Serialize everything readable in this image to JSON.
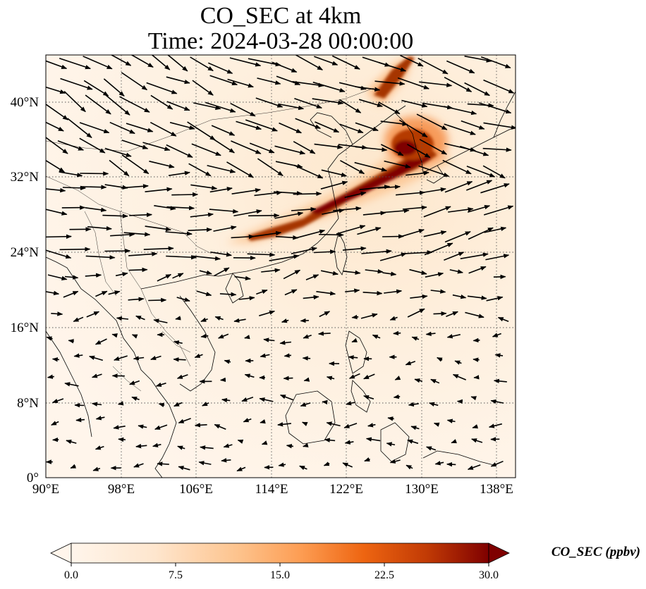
{
  "title": {
    "line1": "CO_SEC at 4km",
    "line2": "Time: 2024-03-28 00:00:00"
  },
  "map": {
    "lon_range": [
      90,
      140
    ],
    "lat_range": [
      0,
      45
    ],
    "lon_ticks": [
      "90°E",
      "98°E",
      "106°E",
      "114°E",
      "122°E",
      "130°E",
      "138°E"
    ],
    "lat_ticks": [
      "0°",
      "8°N",
      "16°N",
      "24°N",
      "32°N",
      "40°N"
    ],
    "lon_tick_values": [
      90,
      98,
      106,
      114,
      122,
      130,
      138
    ],
    "lat_tick_values": [
      0,
      8,
      16,
      24,
      32,
      40
    ],
    "gridlines": "dotted",
    "field": "CO_SEC",
    "plume": "narrow band of high CO from ~108°E 25°N northeast to ~130°E 44°N, peak over Korea / Yellow Sea",
    "vectors": "wind vectors; strong westerly/northwesterly flow north of 24°N, weak and variable to the south"
  },
  "colorbar": {
    "label": "CO_SEC (ppbv)",
    "ticks": [
      "0.0",
      "7.5",
      "15.0",
      "22.5",
      "30.0"
    ],
    "tick_values": [
      0,
      7.5,
      15,
      22.5,
      30
    ],
    "range": [
      0,
      30
    ],
    "extend": "both",
    "colors": [
      "#fff5eb",
      "#fdd49e",
      "#fdae6b",
      "#f16913",
      "#d94801",
      "#a63603",
      "#7f0000"
    ]
  }
}
